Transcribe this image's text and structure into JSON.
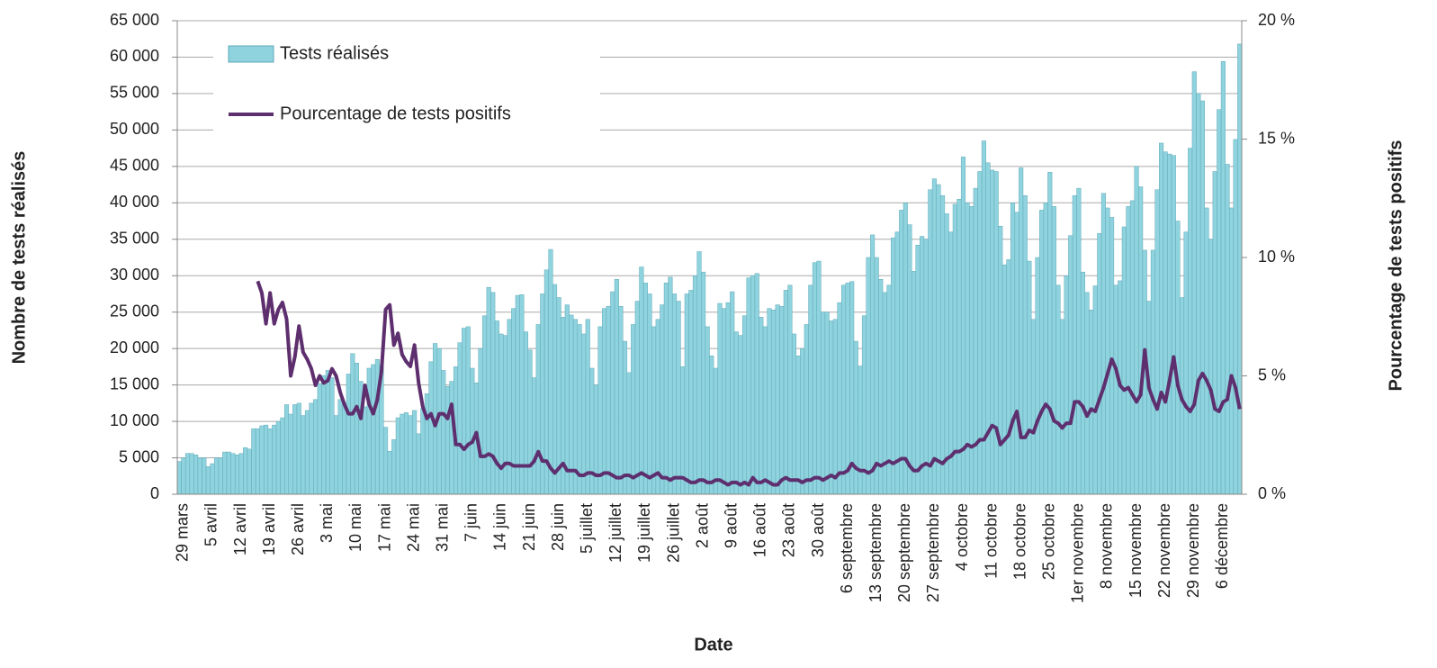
{
  "chart_data": {
    "type": "bar",
    "x_label": "Date",
    "y_label": "Nombre de tests réalisés",
    "y2_label": "Pourcentage de tests positifs",
    "categories": [
      null,
      "29 mars",
      null,
      null,
      null,
      null,
      null,
      null,
      "5 avril",
      null,
      null,
      null,
      null,
      null,
      null,
      "12 avril",
      null,
      null,
      null,
      null,
      null,
      null,
      "19 avril",
      null,
      null,
      null,
      null,
      null,
      null,
      "26 avril",
      null,
      null,
      null,
      null,
      null,
      null,
      "3 mai",
      null,
      null,
      null,
      null,
      null,
      null,
      "10 mai",
      null,
      null,
      null,
      null,
      null,
      null,
      "17 mai",
      null,
      null,
      null,
      null,
      null,
      null,
      "24 mai",
      null,
      null,
      null,
      null,
      null,
      null,
      "31 mai",
      null,
      null,
      null,
      null,
      null,
      null,
      "7 juin",
      null,
      null,
      null,
      null,
      null,
      null,
      "14 juin",
      null,
      null,
      null,
      null,
      null,
      null,
      "21 juin",
      null,
      null,
      null,
      null,
      null,
      null,
      "28 juin",
      null,
      null,
      null,
      null,
      null,
      null,
      "5 juillet",
      null,
      null,
      null,
      null,
      null,
      null,
      "12 juillet",
      null,
      null,
      null,
      null,
      null,
      null,
      "19 juillet",
      null,
      null,
      null,
      null,
      null,
      null,
      "26 juillet",
      null,
      null,
      null,
      null,
      null,
      null,
      "2 août",
      null,
      null,
      null,
      null,
      null,
      null,
      "9 août",
      null,
      null,
      null,
      null,
      null,
      null,
      "16 août",
      null,
      null,
      null,
      null,
      null,
      null,
      "23 août",
      null,
      null,
      null,
      null,
      null,
      null,
      "30 août",
      null,
      null,
      null,
      null,
      null,
      null,
      "6 septembre",
      null,
      null,
      null,
      null,
      null,
      null,
      "13 septembre",
      null,
      null,
      null,
      null,
      null,
      null,
      "20 septembre",
      null,
      null,
      null,
      null,
      null,
      null,
      "27 septembre",
      null,
      null,
      null,
      null,
      null,
      null,
      "4 octobre",
      null,
      null,
      null,
      null,
      null,
      null,
      "11 octobre",
      null,
      null,
      null,
      null,
      null,
      null,
      "18 octobre",
      null,
      null,
      null,
      null,
      null,
      null,
      "25 octobre",
      null,
      null,
      null,
      null,
      null,
      null,
      "1er novembre",
      null,
      null,
      null,
      null,
      null,
      null,
      "8 novembre",
      null,
      null,
      null,
      null,
      null,
      null,
      "15 novembre",
      null,
      null,
      null,
      null,
      null,
      null,
      "22 novembre",
      null,
      null,
      null,
      null,
      null,
      null,
      "29 novembre",
      null,
      null,
      null,
      null,
      null,
      null,
      "6 décembre",
      null,
      null,
      null,
      null
    ],
    "series": [
      {
        "name": "Tests réalisés",
        "type": "bar",
        "axis": "y",
        "color": "#8fd3de",
        "values": [
          4500,
          5000,
          5600,
          5600,
          5400,
          5000,
          5000,
          3800,
          4200,
          5000,
          5000,
          5800,
          5800,
          5600,
          5400,
          5600,
          6400,
          6200,
          9000,
          9000,
          9400,
          9500,
          9000,
          9500,
          10000,
          10500,
          12300,
          11000,
          12300,
          12500,
          10800,
          11500,
          12500,
          13000,
          15200,
          16300,
          17000,
          16000,
          10800,
          13000,
          12500,
          16500,
          19300,
          18000,
          15500,
          12000,
          17300,
          17800,
          18500,
          17700,
          9200,
          5900,
          7500,
          10500,
          11000,
          11200,
          10800,
          11500,
          8300,
          11800,
          13800,
          18200,
          20700,
          20000,
          17000,
          14800,
          15500,
          17500,
          20800,
          22800,
          23000,
          17300,
          15300,
          20000,
          24500,
          28400,
          27700,
          23800,
          22000,
          21800,
          24000,
          25500,
          27300,
          27400,
          22300,
          19800,
          16000,
          23300,
          27500,
          30800,
          33600,
          28800,
          27000,
          24300,
          26000,
          24600,
          24000,
          23300,
          22000,
          24000,
          17300,
          15000,
          23000,
          25500,
          25800,
          27800,
          29500,
          25800,
          21000,
          16700,
          23300,
          26500,
          31200,
          29000,
          27500,
          23000,
          24000,
          26000,
          29000,
          29800,
          27500,
          26500,
          17500,
          27500,
          28000,
          30000,
          33300,
          30500,
          23000,
          19000,
          17300,
          26200,
          25500,
          26300,
          27800,
          22300,
          21800,
          24500,
          29700,
          30000,
          30300,
          24300,
          23000,
          25500,
          25300,
          26000,
          25800,
          28000,
          28700,
          22000,
          19000,
          20000,
          23300,
          28700,
          31800,
          32000,
          25000,
          25000,
          23800,
          24000,
          26300,
          28700,
          29000,
          29200,
          21000,
          17600,
          24500,
          32500,
          35600,
          32500,
          29500,
          27700,
          28700,
          35200,
          36000,
          39000,
          40000,
          37000,
          30600,
          34200,
          35400,
          35000,
          41800,
          43300,
          42500,
          41000,
          38500,
          36000,
          39800,
          40500,
          46300,
          40000,
          39500,
          42000,
          44300,
          48500,
          45500,
          44500,
          44300,
          36800,
          31500,
          32200,
          40000,
          38700,
          44800,
          41000,
          32000,
          24000,
          32500,
          39000,
          40000,
          44200,
          39500,
          28700,
          24000,
          30000,
          35500,
          41000,
          42000,
          30500,
          27700,
          25300,
          28600,
          35800,
          41300,
          39300,
          38000,
          28700,
          29300,
          36700,
          39500,
          40300,
          45000,
          42200,
          33500,
          26500,
          33500,
          41800,
          48200,
          47000,
          46700,
          46500,
          37500,
          27000,
          36000,
          47500,
          58000,
          55000,
          54000,
          39300,
          35000,
          44300,
          52800,
          59400,
          45300,
          39300,
          48700,
          61800
        ]
      },
      {
        "name": "Pourcentage de tests positifs",
        "type": "line",
        "axis": "y2",
        "color": "#5e2f6e",
        "values": [
          null,
          null,
          null,
          null,
          null,
          null,
          null,
          null,
          null,
          null,
          null,
          null,
          null,
          null,
          null,
          null,
          null,
          null,
          null,
          9.0,
          8.5,
          7.2,
          8.5,
          7.2,
          7.8,
          8.1,
          7.4,
          5.0,
          5.8,
          7.1,
          6.0,
          5.7,
          5.3,
          4.6,
          5.0,
          4.7,
          4.8,
          5.3,
          5.0,
          4.3,
          3.8,
          3.4,
          3.4,
          3.7,
          3.2,
          4.6,
          3.8,
          3.4,
          4.0,
          5.2,
          7.8,
          8.0,
          6.3,
          6.8,
          5.9,
          5.6,
          5.4,
          6.3,
          4.7,
          3.7,
          3.2,
          3.4,
          2.9,
          3.4,
          3.4,
          3.2,
          3.8,
          2.1,
          2.1,
          1.9,
          2.1,
          2.2,
          2.6,
          1.6,
          1.6,
          1.7,
          1.6,
          1.3,
          1.1,
          1.3,
          1.3,
          1.2,
          1.2,
          1.2,
          1.2,
          1.2,
          1.4,
          1.8,
          1.4,
          1.4,
          1.1,
          0.9,
          1.1,
          1.3,
          1.0,
          1.0,
          1.0,
          0.8,
          0.8,
          0.9,
          0.9,
          0.8,
          0.8,
          0.9,
          0.9,
          0.8,
          0.7,
          0.7,
          0.8,
          0.8,
          0.7,
          0.8,
          0.9,
          0.8,
          0.7,
          0.8,
          0.9,
          0.7,
          0.7,
          0.6,
          0.7,
          0.7,
          0.7,
          0.6,
          0.5,
          0.5,
          0.6,
          0.6,
          0.5,
          0.5,
          0.6,
          0.6,
          0.5,
          0.4,
          0.5,
          0.5,
          0.4,
          0.5,
          0.4,
          0.7,
          0.5,
          0.5,
          0.6,
          0.5,
          0.4,
          0.4,
          0.6,
          0.7,
          0.6,
          0.6,
          0.6,
          0.5,
          0.6,
          0.6,
          0.7,
          0.7,
          0.6,
          0.7,
          0.8,
          0.7,
          0.9,
          0.9,
          1.0,
          1.3,
          1.1,
          1.0,
          1.0,
          0.9,
          1.0,
          1.3,
          1.2,
          1.3,
          1.4,
          1.3,
          1.4,
          1.5,
          1.5,
          1.2,
          1.0,
          1.0,
          1.2,
          1.3,
          1.2,
          1.5,
          1.4,
          1.3,
          1.5,
          1.6,
          1.8,
          1.8,
          1.9,
          2.1,
          2.0,
          2.1,
          2.3,
          2.3,
          2.6,
          2.9,
          2.8,
          2.1,
          2.3,
          2.5,
          3.1,
          3.5,
          2.4,
          2.4,
          2.7,
          2.6,
          3.1,
          3.5,
          3.8,
          3.6,
          3.1,
          3.0,
          2.8,
          3.0,
          3.0,
          3.9,
          3.9,
          3.7,
          3.3,
          3.6,
          3.5,
          4.0,
          4.5,
          5.1,
          5.7,
          5.3,
          4.6,
          4.4,
          4.5,
          4.2,
          3.9,
          4.2,
          6.1,
          4.5,
          4.0,
          3.6,
          4.3,
          3.9,
          4.8,
          5.8,
          4.6,
          4.0,
          3.7,
          3.5,
          3.8,
          4.8,
          5.1,
          4.8,
          4.4,
          3.6,
          3.5,
          3.9,
          4.0,
          5.0,
          4.5,
          3.6
        ]
      }
    ],
    "ylim": [
      0,
      65000
    ],
    "yticks": [
      0,
      {
        "value": 5000,
        "label": "5 000"
      },
      {
        "value": 10000,
        "label": "10 000"
      },
      {
        "value": 15000,
        "label": "15 000"
      },
      {
        "value": 20000,
        "label": "20 000"
      },
      {
        "value": 25000,
        "label": "25 000"
      },
      {
        "value": 30000,
        "label": "30 000"
      },
      {
        "value": 35000,
        "label": "35 000"
      },
      {
        "value": 40000,
        "label": "40 000"
      },
      {
        "value": 45000,
        "label": "45 000"
      },
      {
        "value": 50000,
        "label": "50 000"
      },
      {
        "value": 55000,
        "label": "55 000"
      },
      {
        "value": 60000,
        "label": "60 000"
      },
      {
        "value": 65000,
        "label": "65 000"
      }
    ],
    "y2lim": [
      0,
      20
    ],
    "y2ticks": [
      {
        "value": 0,
        "label": "0 %"
      },
      {
        "value": 5,
        "label": "5 %"
      },
      {
        "value": 10,
        "label": "10 %"
      },
      {
        "value": 15,
        "label": "15 %"
      },
      {
        "value": 20,
        "label": "20 %"
      }
    ],
    "grid": true,
    "legend": "top-left"
  }
}
